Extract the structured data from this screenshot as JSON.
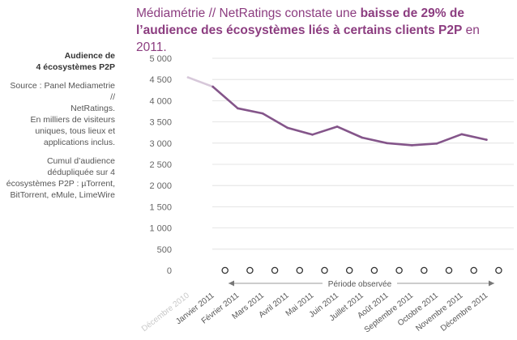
{
  "headline": {
    "part1": "Médiamétrie // NetRatings constate une ",
    "bold1": "baisse de 29% de l’audience des écosystèmes liés à certains clients P2P",
    "part2": " en 2011."
  },
  "sidebar": {
    "title_line1": "Audience de",
    "title_line2": "4 écosystèmes P2P",
    "source_line1": "Source : Panel Mediametrie //",
    "source_line2": "NetRatings.",
    "source_line3": "En milliers de visiteurs",
    "source_line4": "uniques, tous lieux et",
    "source_line5": "applications inclus.",
    "note_line1": "Cumul d’audience",
    "note_line2": "dédupliquée sur 4",
    "note_line3": "écosystèmes P2P : µTorrent,",
    "note_line4": "BitTorrent, eMule, LimeWire"
  },
  "period_label": "Période observée",
  "chart_data": {
    "type": "line",
    "title": "Audience de 4 écosystèmes P2P",
    "ylabel": "En milliers de visiteurs uniques",
    "xlabel": "",
    "ylim": [
      0,
      5000
    ],
    "ytick_step": 500,
    "ytick_labels": [
      "0",
      "500",
      "1 000",
      "1 500",
      "2 000",
      "2 500",
      "3 000",
      "3 500",
      "4 000",
      "4 500",
      "5 000"
    ],
    "grid": true,
    "categories": [
      "Décembre 2010",
      "Janvier 2011",
      "Février 2011",
      "Mars 2011",
      "Avril 2011",
      "Mai 2011",
      "Juin 2011",
      "Juillet 2011",
      "Août 2011",
      "Septembre 2011",
      "Octobre 2011",
      "Novembre 2011",
      "Décembre 2011"
    ],
    "series": [
      {
        "values": [
          4550,
          4330,
          3820,
          3700,
          3360,
          3200,
          3390,
          3130,
          3000,
          2950,
          2990,
          3210,
          3080
        ]
      }
    ],
    "colors": {
      "line": "#84558a",
      "line_faded": "#d7c8da",
      "grid": "#dddddd",
      "markers": "#333333"
    }
  }
}
